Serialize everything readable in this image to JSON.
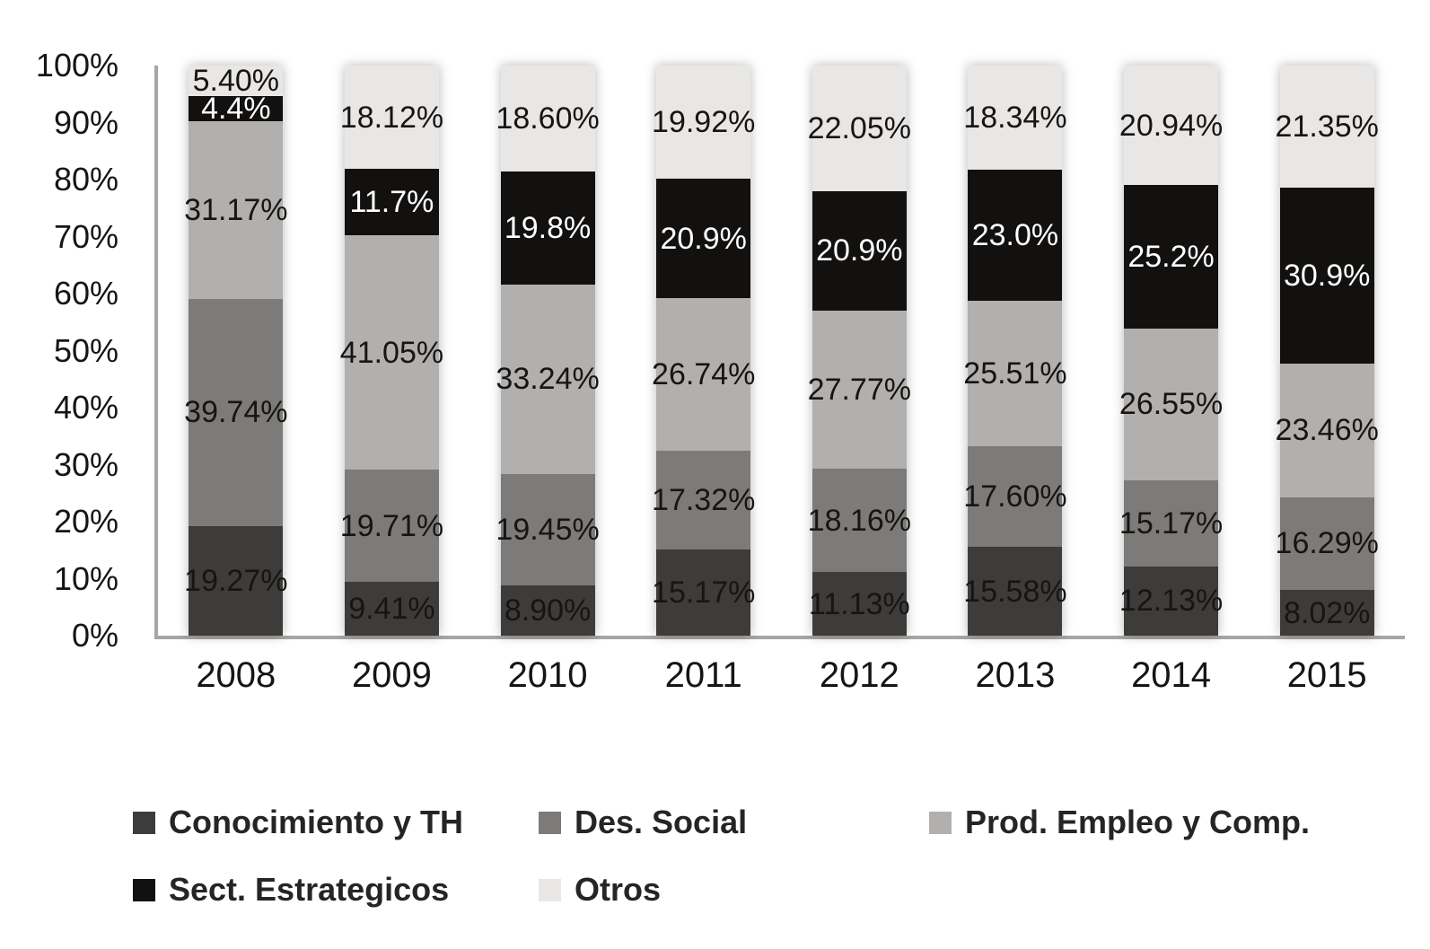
{
  "chart_data": {
    "type": "bar",
    "variant": "stacked-100-percent",
    "title": "",
    "xlabel": "",
    "ylabel": "",
    "categories": [
      "2008",
      "2009",
      "2010",
      "2011",
      "2012",
      "2013",
      "2014",
      "2015"
    ],
    "series": [
      {
        "name": "Conocimiento y TH",
        "color": "#3d3c3a",
        "label_color": "#161513",
        "values": [
          19.27,
          9.41,
          8.9,
          15.17,
          11.13,
          15.58,
          12.13,
          8.02
        ],
        "labels": [
          "19.27%",
          "9.41%",
          "8.90%",
          "15.17%",
          "11.13%",
          "15.58%",
          "12.13%",
          "8.02%"
        ]
      },
      {
        "name": "Des. Social",
        "color": "#7d7b79",
        "label_color": "#161513",
        "values": [
          39.74,
          19.71,
          19.45,
          17.32,
          18.16,
          17.6,
          15.17,
          16.29
        ],
        "labels": [
          "39.74%",
          "19.71%",
          "19.45%",
          "17.32%",
          "18.16%",
          "17.60%",
          "15.17%",
          "16.29%"
        ]
      },
      {
        "name": "Prod. Empleo y Comp.",
        "color": "#b2b0ae",
        "label_color": "#161513",
        "values": [
          31.17,
          41.05,
          33.24,
          26.74,
          27.77,
          25.51,
          26.55,
          23.46
        ],
        "labels": [
          "31.17%",
          "41.05%",
          "33.24%",
          "26.74%",
          "27.77%",
          "25.51%",
          "26.55%",
          "23.46%"
        ]
      },
      {
        "name": "Sect. Estrategicos",
        "color": "#121110",
        "label_color": "#ffffff",
        "values": [
          4.4,
          11.7,
          19.8,
          20.9,
          20.9,
          23.0,
          25.2,
          30.9
        ],
        "labels": [
          "4.4%",
          "11.7%",
          "19.8%",
          "20.9%",
          "20.9%",
          "23.0%",
          "25.2%",
          "30.9%"
        ]
      },
      {
        "name": "Otros",
        "color": "#e8e7e6",
        "label_color": "#161513",
        "values": [
          5.4,
          18.12,
          18.6,
          19.92,
          22.05,
          18.34,
          20.94,
          21.35
        ],
        "labels": [
          "5.40%",
          "18.12%",
          "18.60%",
          "19.92%",
          "22.05%",
          "18.34%",
          "20.94%",
          "21.35%"
        ]
      }
    ],
    "y_axis": {
      "ticks": [
        "100%",
        "90%",
        "80%",
        "70%",
        "60%",
        "50%",
        "40%",
        "30%",
        "20%",
        "10%",
        "0%"
      ],
      "min": 0,
      "max": 100,
      "grid": false
    },
    "legend": {
      "position": "bottom",
      "items": [
        "Conocimiento y TH",
        "Des. Social",
        "Prod. Empleo y Comp.",
        "Sect. Estrategicos",
        "Otros"
      ]
    }
  },
  "colors": {
    "axis_line": "#a7a6a4",
    "text": "#161513",
    "legend_text": "#262523",
    "background": "#ffffff"
  }
}
